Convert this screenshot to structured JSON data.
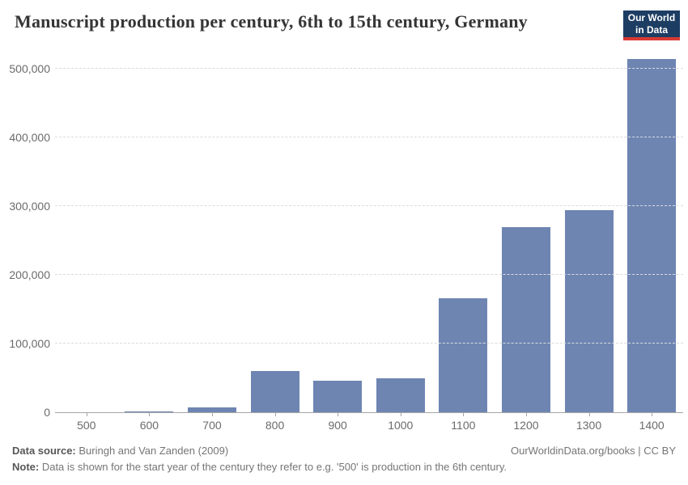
{
  "header": {
    "title": "Manuscript production per century, 6th to 15th century, Germany",
    "logo": {
      "line1": "Our World",
      "line2": "in Data"
    }
  },
  "chart_data": {
    "type": "bar",
    "title": "Manuscript production per century, 6th to 15th century, Germany",
    "categories": [
      "500",
      "600",
      "700",
      "800",
      "900",
      "1000",
      "1100",
      "1200",
      "1300",
      "1400"
    ],
    "values": [
      0,
      1000,
      7000,
      59500,
      45700,
      50000,
      166000,
      270000,
      294000,
      515000
    ],
    "xlabel": "",
    "ylabel": "",
    "y_ticks": [
      0,
      100000,
      200000,
      300000,
      400000,
      500000
    ],
    "y_tick_labels": [
      "0",
      "100,000",
      "200,000",
      "300,000",
      "400,000",
      "500,000"
    ],
    "ylim": [
      0,
      530000
    ],
    "grid": "horizontal-dashed",
    "legend": "none",
    "bar_color": "#6e85b2"
  },
  "footer": {
    "source_label": "Data source:",
    "source_text": " Buringh and Van Zanden (2009)",
    "credit": "OurWorldinData.org/books | CC BY",
    "note_label": "Note:",
    "note_text": " Data is shown for the start year of the century they refer to e.g. '500' is production in the 6th century."
  },
  "colors": {
    "bar": "#6e85b2",
    "logo_bg": "#1d3d63",
    "logo_accent": "#d93a34",
    "axis_line": "#a5a5a5",
    "gridline": "#dcdcdc",
    "tick_text": "#6b6b6b",
    "title_text": "#353535",
    "footer_text": "#757575"
  }
}
